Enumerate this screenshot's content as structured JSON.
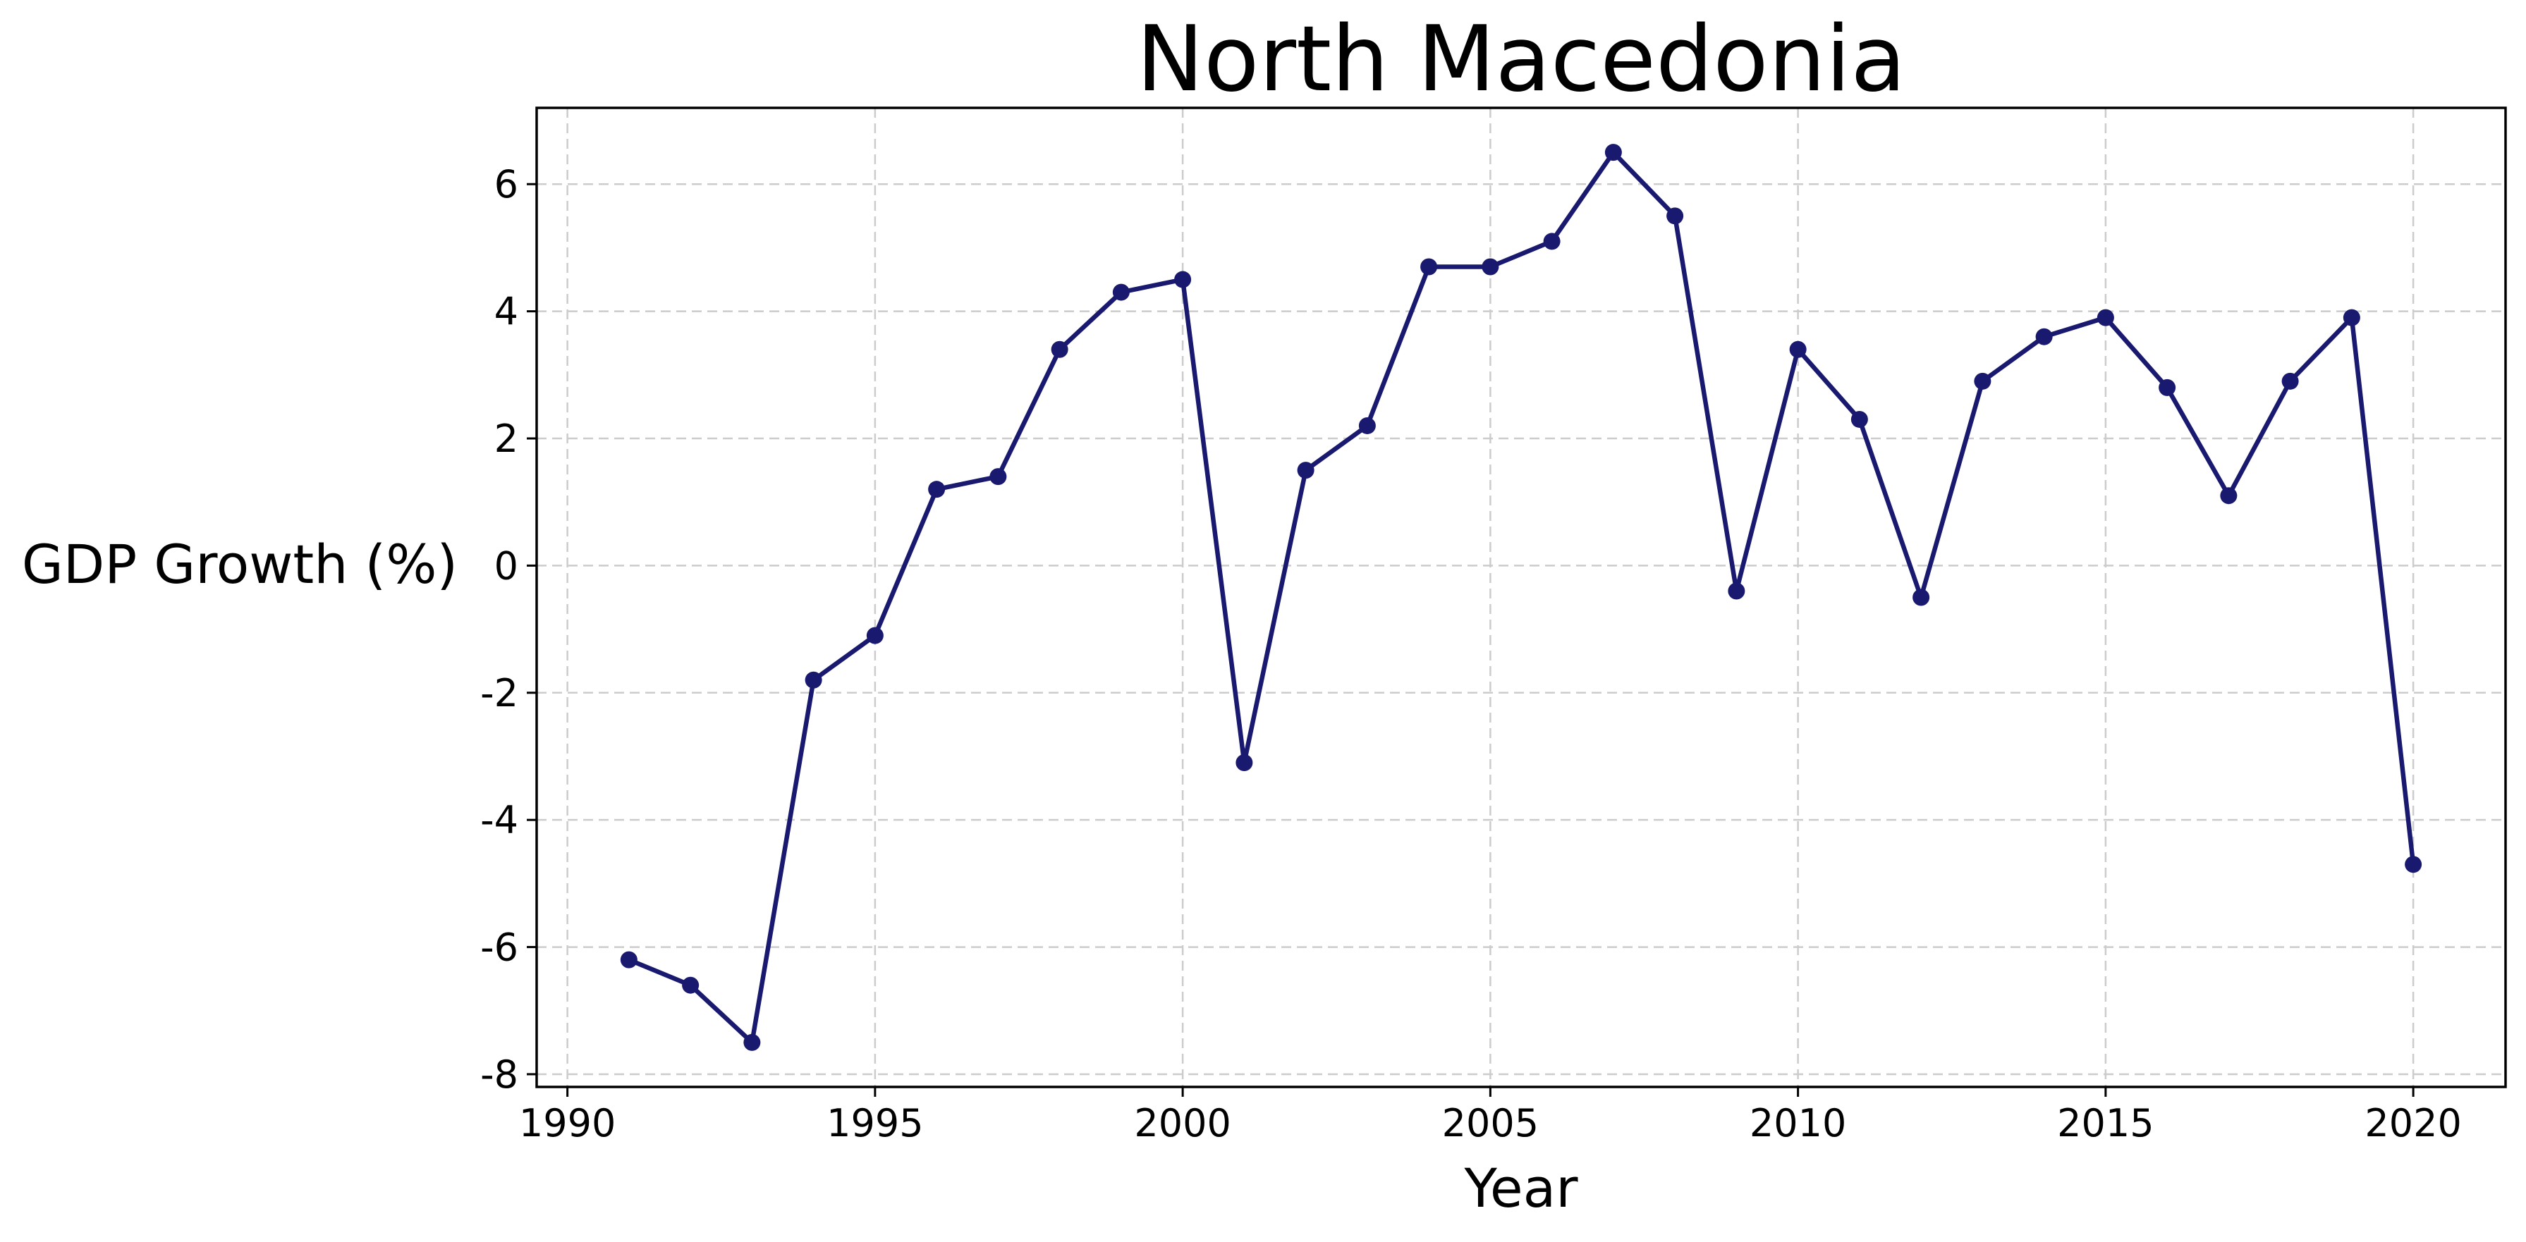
{
  "chart_data": {
    "type": "line",
    "title": "North Macedonia",
    "xlabel": "Year",
    "ylabel": "GDP Growth (%)",
    "xlim": [
      1989.5,
      2021.5
    ],
    "ylim": [
      -8.2,
      7.2
    ],
    "xticks": [
      1990,
      1995,
      2000,
      2005,
      2010,
      2015,
      2020
    ],
    "xtick_labels": [
      "1990",
      "1995",
      "2000",
      "2005",
      "2010",
      "2015",
      "2020"
    ],
    "yticks": [
      -8,
      -6,
      -4,
      -2,
      0,
      2,
      4,
      6
    ],
    "ytick_labels": [
      "-8",
      "-6",
      "-4",
      "-2",
      "0",
      "2",
      "4",
      "6"
    ],
    "grid": true,
    "series": [
      {
        "color": "#191970",
        "marker": "circle",
        "x": [
          1991,
          1992,
          1993,
          1994,
          1995,
          1996,
          1997,
          1998,
          1999,
          2000,
          2001,
          2002,
          2003,
          2004,
          2005,
          2006,
          2007,
          2008,
          2009,
          2010,
          2011,
          2012,
          2013,
          2014,
          2015,
          2016,
          2017,
          2018,
          2019,
          2020
        ],
        "y": [
          -6.2,
          -6.6,
          -7.5,
          -1.8,
          -1.1,
          1.2,
          1.4,
          3.4,
          4.3,
          4.5,
          -3.1,
          1.5,
          2.2,
          4.7,
          4.7,
          5.1,
          6.5,
          5.5,
          -0.4,
          3.4,
          2.3,
          -0.5,
          2.9,
          3.6,
          3.9,
          2.8,
          1.1,
          2.9,
          3.9,
          -4.7
        ]
      }
    ]
  }
}
